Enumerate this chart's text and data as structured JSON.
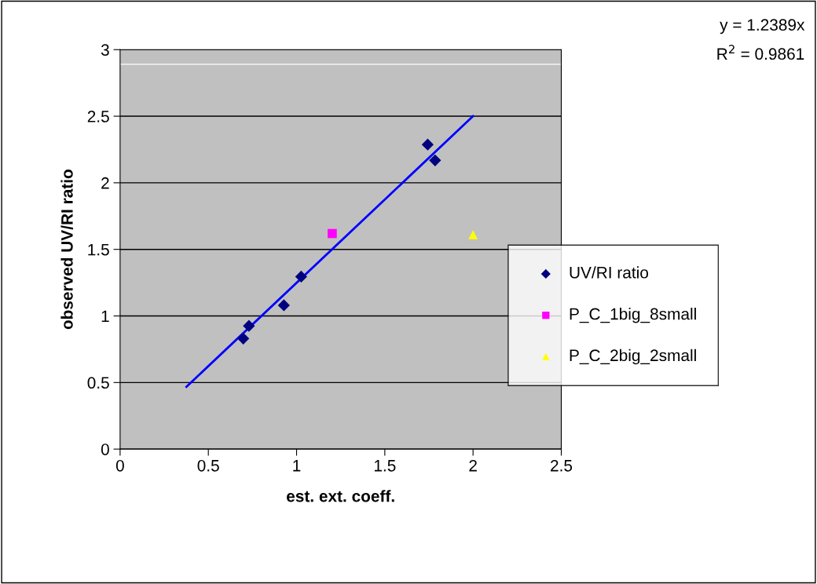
{
  "chart_data": {
    "type": "scatter",
    "xlabel": "est. ext. coeff.",
    "ylabel": "observed UV/RI ratio",
    "xlim": [
      0,
      2.5
    ],
    "xticks": [
      0,
      0.5,
      1,
      1.5,
      2,
      2.5
    ],
    "ylim": [
      0,
      3
    ],
    "yticks": [
      0,
      0.5,
      1,
      1.5,
      2,
      2.5,
      3
    ],
    "grid": "y",
    "legend": "right",
    "series": [
      {
        "name": "UV/RI ratio",
        "color": "#000080",
        "marker": "diamond",
        "x": [
          0.698,
          0.73,
          0.928,
          1.026,
          1.743,
          1.785
        ],
        "values": [
          0.83,
          0.925,
          1.08,
          1.295,
          2.287,
          2.168
        ]
      },
      {
        "name": "P_C_1big_8small",
        "color": "#ff00ff",
        "marker": "square",
        "x": [
          1.202
        ],
        "values": [
          1.619
        ]
      },
      {
        "name": "P_C_2big_2small",
        "color": "#ffff00",
        "marker": "triangle",
        "x": [
          2.0
        ],
        "values": [
          1.61
        ]
      },
      {
        "type": "line",
        "color": "#0000ff",
        "marker": "none",
        "x": [
          0.376,
          2.0
        ],
        "values": [
          0.468,
          2.5
        ]
      }
    ],
    "ref_lines": [
      {
        "axis": "y",
        "value": 2.89,
        "color": "#ffffff",
        "line_style": "solid"
      }
    ],
    "annotations": [
      "y = 1.2389x",
      "R$^{2}$ = 0.9861"
    ]
  }
}
